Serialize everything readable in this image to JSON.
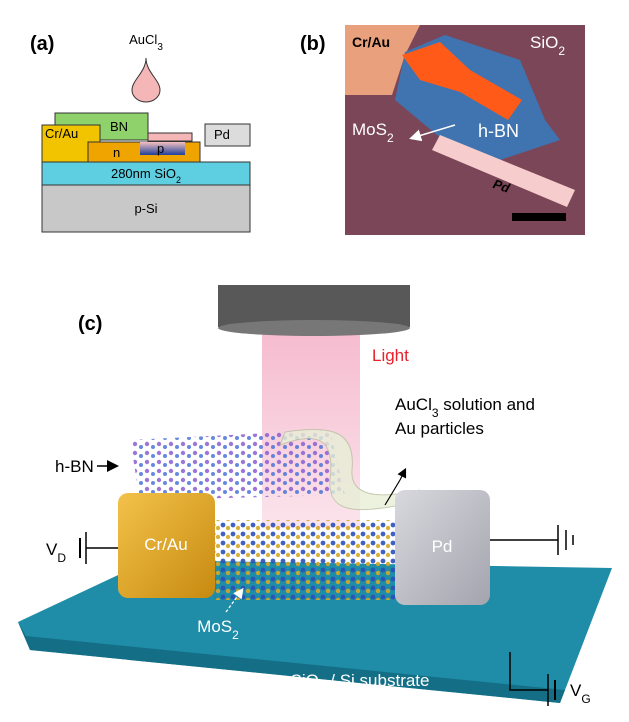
{
  "panel_a": {
    "label": "(a)",
    "reagent": {
      "base": "AuCl",
      "sub": "3"
    },
    "electrode_left": "Cr/Au",
    "cap": "BN",
    "electrode_right": "Pd",
    "n_region": "n",
    "p_region": "p",
    "oxide": {
      "base": "280nm SiO",
      "sub": "2"
    },
    "substrate": "p-Si"
  },
  "panel_b": {
    "label": "(b)",
    "electrode_left": "Cr/Au",
    "oxide": {
      "base": "SiO",
      "sub": "2"
    },
    "channel": {
      "base": "MoS",
      "sub": "2"
    },
    "cap": "h-BN",
    "electrode_right": "Pd"
  },
  "panel_c": {
    "label": "(c)",
    "light": "Light",
    "solution": [
      "AuCl",
      "3",
      " solution and",
      "Au particles"
    ],
    "cap": "h-BN",
    "electrode_left": "Cr/Au",
    "electrode_right": "Pd",
    "drain": {
      "base": "V",
      "sub": "D"
    },
    "channel": {
      "base": "MoS",
      "sub": "2"
    },
    "substrate": {
      "base": "SiO",
      "sub": "2",
      "rest": " / Si substrate"
    },
    "gate": {
      "base": "V",
      "sub": "G"
    }
  }
}
